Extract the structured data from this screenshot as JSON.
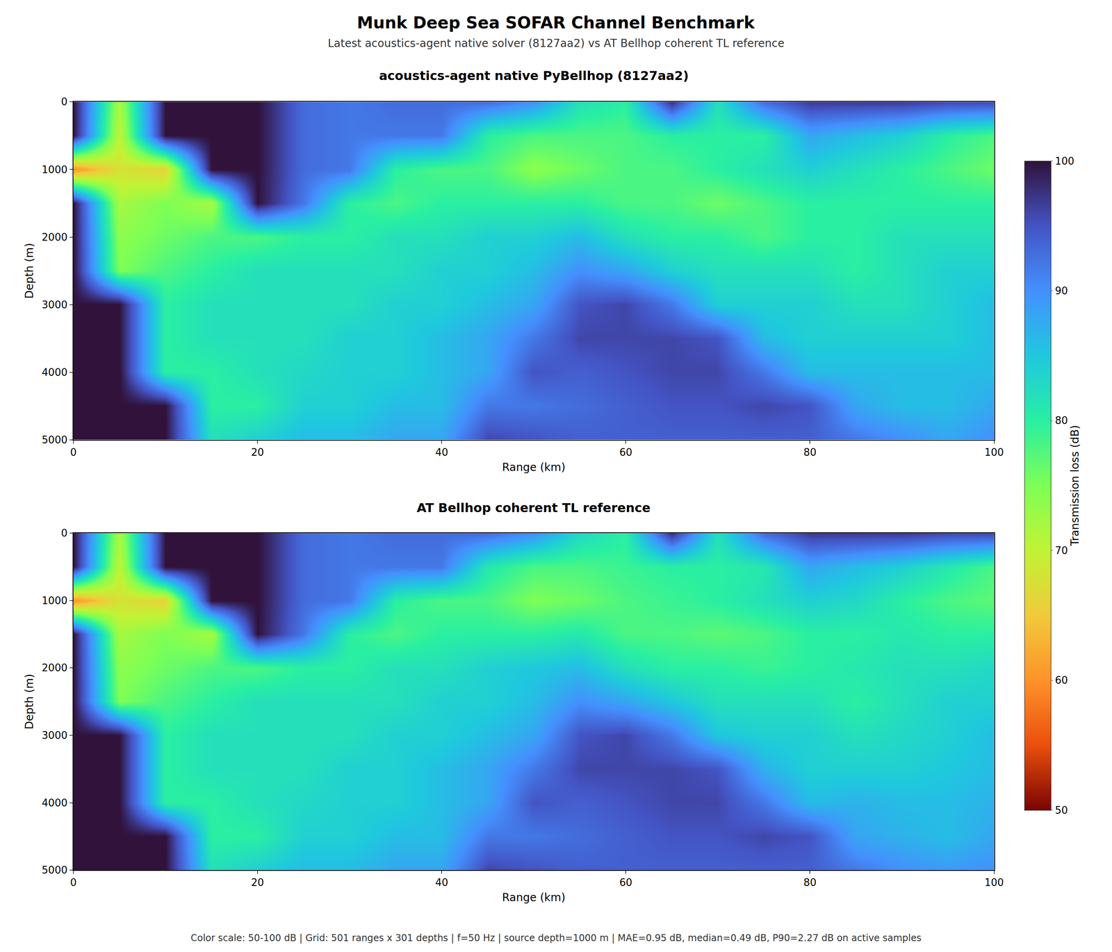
{
  "chart_data": {
    "type": "heatmap",
    "title": "Munk Deep Sea SOFAR Channel Benchmark",
    "subtitle": "Latest acoustics-agent native solver (8127aa2) vs AT Bellhop coherent TL reference",
    "note": "Color scale: 50-100 dB | Grid: 501 ranges x 301 depths | f=50 Hz | source depth=1000 m | MAE=0.95 dB, median=0.49 dB, P90=2.27 dB on active samples",
    "xlabel": "Range (km)",
    "ylabel": "Depth (m)",
    "x": [
      0,
      5,
      10,
      15,
      20,
      25,
      30,
      35,
      40,
      45,
      50,
      55,
      60,
      65,
      70,
      75,
      80,
      85,
      90,
      95,
      100
    ],
    "y": [
      0,
      500,
      1000,
      1500,
      2000,
      2500,
      3000,
      3500,
      4000,
      4500,
      5000
    ],
    "xlim": [
      0,
      100
    ],
    "ylim": [
      5000,
      0
    ],
    "xticks": [
      0,
      20,
      40,
      60,
      80,
      100
    ],
    "yticks": [
      0,
      1000,
      2000,
      3000,
      4000,
      5000
    ],
    "grid": false,
    "colorbar": {
      "label": "Transmission loss (dB)",
      "range": [
        50,
        100
      ],
      "ticks": [
        50,
        60,
        70,
        80,
        90,
        100
      ]
    },
    "panels": [
      {
        "title": "acoustics-agent native PyBellhop (8127aa2)",
        "cells": [
          [
            100,
            72,
            100,
            100,
            100,
            93,
            92,
            93,
            93,
            93,
            90,
            82,
            80,
            98,
            82,
            93,
            97,
            97,
            97,
            96,
            96
          ],
          [
            100,
            70,
            100,
            100,
            100,
            93,
            92,
            92,
            92,
            80,
            78,
            78,
            78,
            80,
            80,
            80,
            88,
            86,
            84,
            80,
            78
          ],
          [
            60,
            68,
            66,
            100,
            100,
            93,
            92,
            80,
            78,
            78,
            74,
            76,
            78,
            78,
            80,
            82,
            84,
            82,
            80,
            78,
            76
          ],
          [
            100,
            72,
            75,
            72,
            100,
            92,
            80,
            78,
            80,
            80,
            80,
            80,
            78,
            78,
            76,
            78,
            80,
            80,
            80,
            80,
            80
          ],
          [
            100,
            74,
            76,
            78,
            78,
            80,
            80,
            82,
            82,
            84,
            84,
            86,
            82,
            80,
            80,
            78,
            80,
            80,
            82,
            82,
            82
          ],
          [
            100,
            75,
            78,
            80,
            82,
            82,
            82,
            82,
            84,
            84,
            86,
            90,
            88,
            84,
            82,
            82,
            82,
            80,
            82,
            84,
            84
          ],
          [
            100,
            100,
            80,
            82,
            82,
            82,
            82,
            84,
            84,
            86,
            88,
            95,
            96,
            92,
            84,
            84,
            84,
            82,
            82,
            84,
            86
          ],
          [
            100,
            100,
            80,
            82,
            82,
            82,
            84,
            84,
            86,
            88,
            92,
            96,
            96,
            96,
            95,
            86,
            84,
            84,
            84,
            84,
            86
          ],
          [
            100,
            100,
            80,
            80,
            82,
            83,
            84,
            84,
            86,
            88,
            95,
            94,
            95,
            96,
            96,
            92,
            86,
            86,
            86,
            86,
            86
          ],
          [
            100,
            100,
            100,
            80,
            80,
            84,
            84,
            86,
            86,
            92,
            92,
            93,
            94,
            95,
            95,
            96,
            95,
            88,
            86,
            86,
            88
          ],
          [
            100,
            100,
            100,
            82,
            84,
            86,
            86,
            88,
            88,
            96,
            95,
            94,
            94,
            94,
            94,
            94,
            94,
            92,
            90,
            88,
            90
          ]
        ]
      },
      {
        "title": "AT Bellhop coherent TL reference",
        "cells": [
          [
            100,
            72,
            100,
            100,
            100,
            93,
            92,
            93,
            93,
            93,
            90,
            83,
            80,
            98,
            82,
            93,
            97,
            97,
            97,
            96,
            96
          ],
          [
            100,
            70,
            100,
            100,
            100,
            93,
            92,
            92,
            92,
            81,
            78,
            78,
            79,
            80,
            80,
            81,
            88,
            86,
            84,
            81,
            78
          ],
          [
            60,
            68,
            66,
            100,
            100,
            93,
            92,
            80,
            78,
            78,
            75,
            76,
            78,
            79,
            80,
            82,
            84,
            83,
            80,
            78,
            77
          ],
          [
            100,
            72,
            75,
            72,
            100,
            92,
            80,
            78,
            80,
            80,
            80,
            81,
            78,
            78,
            77,
            78,
            80,
            80,
            81,
            80,
            80
          ],
          [
            100,
            74,
            76,
            78,
            78,
            80,
            80,
            82,
            82,
            84,
            85,
            86,
            82,
            80,
            80,
            79,
            80,
            81,
            82,
            82,
            83
          ],
          [
            100,
            75,
            78,
            80,
            82,
            82,
            82,
            82,
            84,
            84,
            86,
            90,
            88,
            85,
            82,
            82,
            82,
            80,
            82,
            84,
            84
          ],
          [
            100,
            100,
            80,
            82,
            82,
            82,
            82,
            84,
            84,
            86,
            88,
            95,
            96,
            92,
            85,
            84,
            84,
            82,
            83,
            84,
            86
          ],
          [
            100,
            100,
            80,
            82,
            82,
            82,
            84,
            84,
            86,
            88,
            92,
            96,
            96,
            96,
            95,
            87,
            84,
            84,
            84,
            85,
            86
          ],
          [
            100,
            100,
            80,
            80,
            82,
            83,
            84,
            84,
            86,
            88,
            95,
            94,
            95,
            96,
            96,
            92,
            86,
            87,
            86,
            86,
            87
          ],
          [
            100,
            100,
            100,
            80,
            80,
            84,
            84,
            86,
            86,
            92,
            92,
            93,
            94,
            95,
            95,
            96,
            95,
            88,
            87,
            86,
            88
          ],
          [
            100,
            100,
            100,
            82,
            84,
            86,
            86,
            88,
            88,
            96,
            95,
            94,
            94,
            94,
            94,
            94,
            94,
            92,
            90,
            89,
            90
          ]
        ]
      }
    ]
  }
}
